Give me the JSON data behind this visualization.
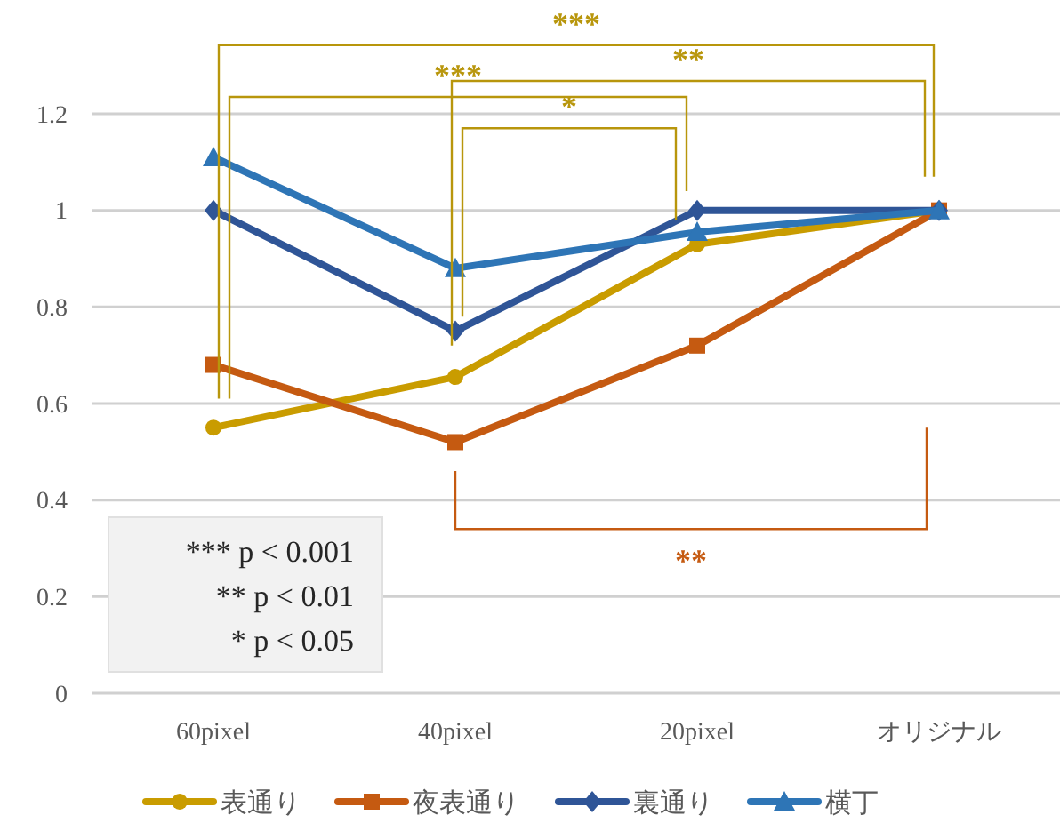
{
  "chart_data": {
    "type": "line",
    "categories": [
      "60pixel",
      "40pixel",
      "20pixel",
      "オリジナル"
    ],
    "series": [
      {
        "name": "表通り",
        "color": "#c99c00",
        "marker": "circle",
        "values": [
          0.55,
          0.655,
          0.93,
          1
        ]
      },
      {
        "name": "夜表通り",
        "color": "#c55a11",
        "marker": "square",
        "values": [
          0.68,
          0.52,
          0.72,
          1
        ]
      },
      {
        "name": "裏通り",
        "color": "#2f5597",
        "marker": "diamond",
        "values": [
          1,
          0.75,
          1,
          1
        ]
      },
      {
        "name": "横丁",
        "color": "#2e75b6",
        "marker": "triangle",
        "values": [
          1.11,
          0.88,
          0.955,
          1
        ]
      }
    ],
    "ylim": [
      0,
      1.2
    ],
    "yticks": [
      0,
      0.2,
      0.4,
      0.6,
      0.8,
      1,
      1.2
    ],
    "grid": "y",
    "legend": "bottom",
    "annotations": [
      "***",
      "***",
      "**",
      "*",
      "**",
      "*** p < 0.001",
      "** p < 0.01",
      "* p < 0.05"
    ]
  }
}
